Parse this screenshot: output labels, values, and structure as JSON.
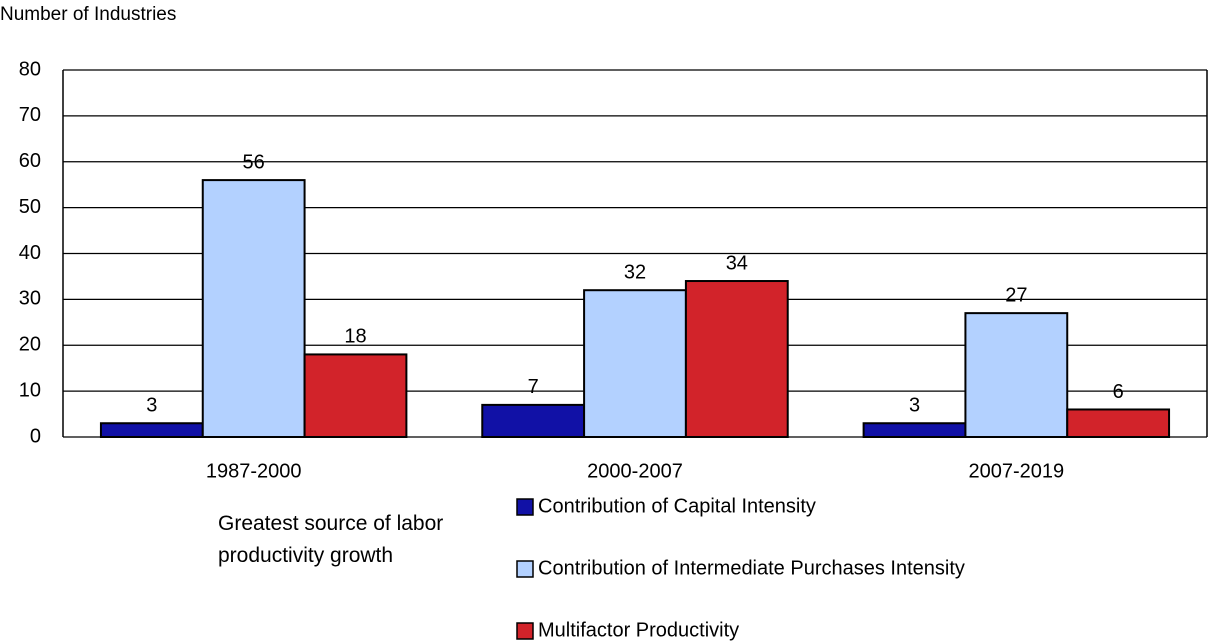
{
  "chart_data": {
    "type": "bar",
    "y_axis_label": "Number of Industries",
    "categories": [
      "1987-2000",
      "2000-2007",
      "2007-2019"
    ],
    "series": [
      {
        "name": "Contribution of Capital Intensity",
        "color": "#1111a6",
        "values": [
          3,
          7,
          3
        ]
      },
      {
        "name": "Contribution of Intermediate Purchases Intensity",
        "color": "#b3d1ff",
        "values": [
          56,
          32,
          27
        ]
      },
      {
        "name": "Multifactor Productivity",
        "color": "#d2232a",
        "values": [
          18,
          34,
          6
        ]
      }
    ],
    "legend_title": "Greatest source of labor productivity growth",
    "ylim": [
      0,
      80
    ],
    "yticks": [
      0,
      10,
      20,
      30,
      40,
      50,
      60,
      70,
      80
    ],
    "grid": true
  }
}
